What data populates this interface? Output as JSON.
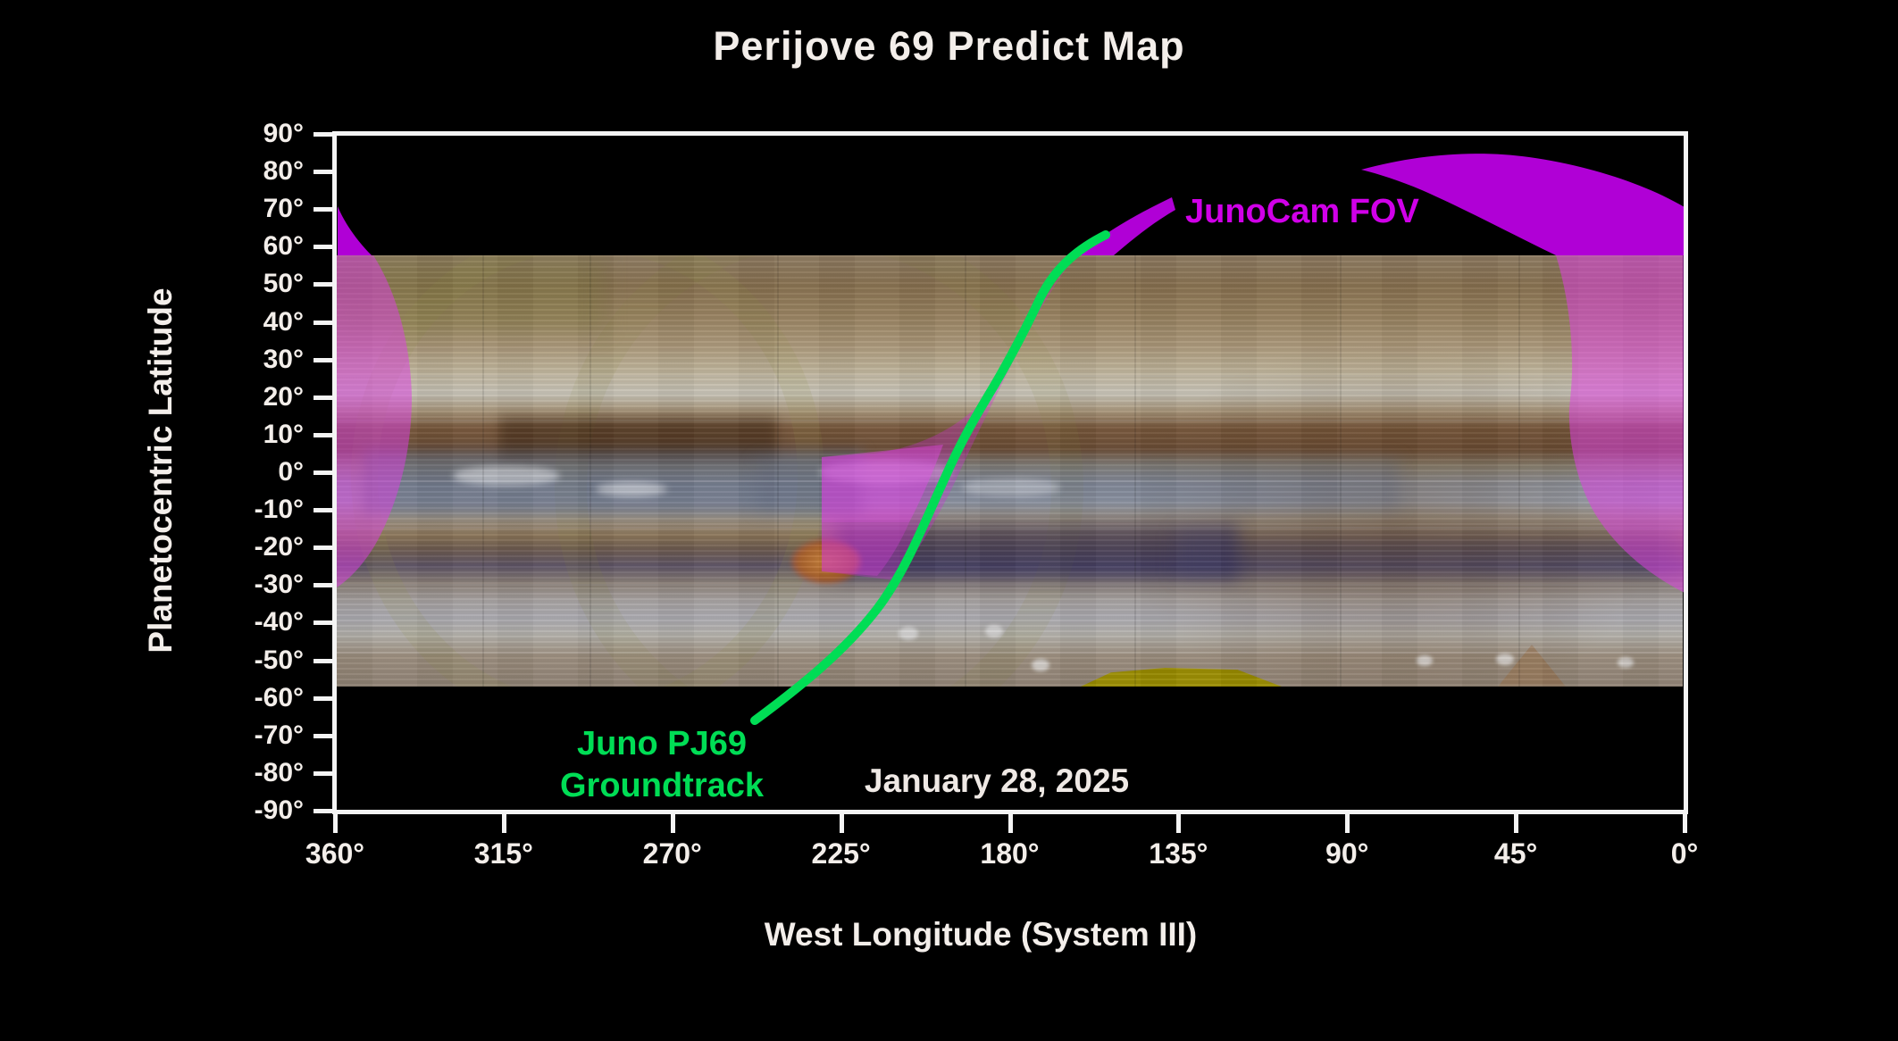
{
  "title": "Perijove 69 Predict Map",
  "axes": {
    "y_label": "Planetocentric Latitude",
    "x_label": "West Longitude (System III)",
    "y_ticks": [
      "90°",
      "80°",
      "70°",
      "60°",
      "50°",
      "40°",
      "30°",
      "20°",
      "10°",
      "0°",
      "-10°",
      "-20°",
      "-30°",
      "-40°",
      "-50°",
      "-60°",
      "-70°",
      "-80°",
      "-90°"
    ],
    "x_ticks": [
      "360°",
      "315°",
      "270°",
      "225°",
      "180°",
      "135°",
      "90°",
      "45°",
      "0°"
    ]
  },
  "annotations": {
    "fov_label": "JunoCam FOV",
    "groundtrack_label_line1": "Juno PJ69",
    "groundtrack_label_line2": "Groundtrack",
    "date_label": "January 28, 2025"
  },
  "colors": {
    "background": "#000000",
    "frame": "#f4f4f4",
    "fov_magenta_solid": "#b000d6",
    "fov_label_magenta": "#d000e8",
    "groundtrack_green": "#00dd55",
    "text_white": "#f3eeea"
  },
  "chart_data": {
    "type": "line",
    "title": "Perijove 69 Predict Map",
    "xlabel": "West Longitude (System III)",
    "ylabel": "Planetocentric Latitude",
    "xlim": [
      360,
      0
    ],
    "ylim": [
      -90,
      90
    ],
    "x_ticks_deg": [
      360,
      315,
      270,
      225,
      180,
      135,
      90,
      45,
      0
    ],
    "y_ticks_deg": [
      90,
      80,
      70,
      60,
      50,
      40,
      30,
      20,
      10,
      0,
      -10,
      -20,
      -30,
      -40,
      -50,
      -60,
      -70,
      -80,
      -90
    ],
    "grid": false,
    "background": "Jupiter cylindrical map mosaic spanning latitude +58 to -56",
    "series": [
      {
        "name": "Juno PJ69 Groundtrack",
        "color": "#00dd55",
        "points_lon_lat": [
          [
            248,
            -66
          ],
          [
            236,
            -56
          ],
          [
            221,
            -46
          ],
          [
            210,
            -35
          ],
          [
            202,
            -25
          ],
          [
            197,
            -14
          ],
          [
            192,
            -2
          ],
          [
            187,
            7
          ],
          [
            182,
            17
          ],
          [
            178,
            26
          ],
          [
            173,
            34
          ],
          [
            168,
            42
          ],
          [
            161,
            50
          ],
          [
            154,
            56
          ],
          [
            149,
            61
          ]
        ]
      }
    ],
    "fov_regions": [
      {
        "name": "north-polar-wing",
        "lon_range": [
          86,
          0
        ],
        "lat_range": [
          58,
          81
        ]
      },
      {
        "name": "near-track-swath",
        "lon_range": [
          237,
          150
        ],
        "lat_range": [
          -28,
          62
        ]
      },
      {
        "name": "west-edge-lens",
        "lon_range": [
          360,
          340
        ],
        "lat_range": [
          -32,
          71
        ]
      },
      {
        "name": "east-edge-lens",
        "lon_range": [
          34,
          0
        ],
        "lat_range": [
          -33,
          58
        ]
      }
    ],
    "annotations_lon_lat": [
      {
        "text": "JunoCam FOV",
        "lon": 103,
        "lat": 70
      },
      {
        "text": "Juno PJ69 Groundtrack",
        "lon": 273,
        "lat": -74
      },
      {
        "text": "January 28, 2025",
        "lon": 183,
        "lat": -78
      }
    ]
  }
}
